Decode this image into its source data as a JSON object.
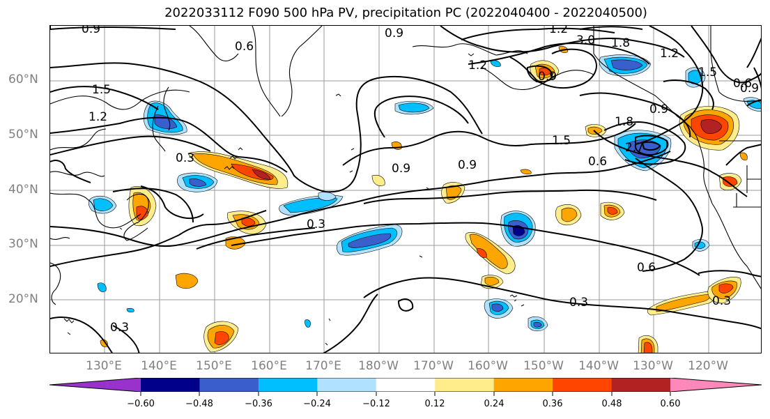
{
  "title": "2022033112 F090 500 hPa PV, precipitation PC (2022040400 - 2022040500)",
  "lat_labels": [
    "60°N",
    "50°N",
    "40°N",
    "30°N",
    "20°N"
  ],
  "lon_labels": [
    "130°E",
    "140°E",
    "150°E",
    "160°E",
    "170°E",
    "180°W",
    "170°W",
    "160°W",
    "150°W",
    "140°W",
    "130°W",
    "120°W"
  ],
  "colorbar": {
    "ticks": [
      "−0.60",
      "−0.48",
      "−0.36",
      "−0.24",
      "−0.12",
      "0.12",
      "0.24",
      "0.36",
      "0.48",
      "0.60"
    ],
    "colors": [
      "#9932CC",
      "#00008B",
      "#3A5FCD",
      "#00BFFF",
      "#B0E2FF",
      "#FFFFFF",
      "#FFEC8B",
      "#FFA500",
      "#FF4500",
      "#B22222",
      "#FF88BB"
    ]
  },
  "contour_labels": [
    "0.9",
    "1.2",
    "0.6",
    "1.5",
    "0.9",
    "1.2",
    "3.0",
    "1.8",
    "1.2",
    "1.2",
    "1.5",
    "0.6",
    "0.9",
    "0.9",
    "1.8",
    "1.5",
    "2.7",
    "0.6",
    "0.3",
    "0.9",
    "0.9",
    "0.3",
    "0.3",
    "0.6",
    "0.3",
    "0.9",
    "0.3"
  ],
  "contour_label_colors": {
    "line": "#000000"
  },
  "shading_colors": {
    "neg_light": "#B0E2FF",
    "neg_mid": "#00BFFF",
    "neg_strong": "#3A5FCD",
    "neg_max": "#00008B",
    "pos_light": "#FFEC8B",
    "pos_mid": "#FFA500",
    "pos_strong": "#FF4500",
    "pos_max": "#B22222"
  }
}
